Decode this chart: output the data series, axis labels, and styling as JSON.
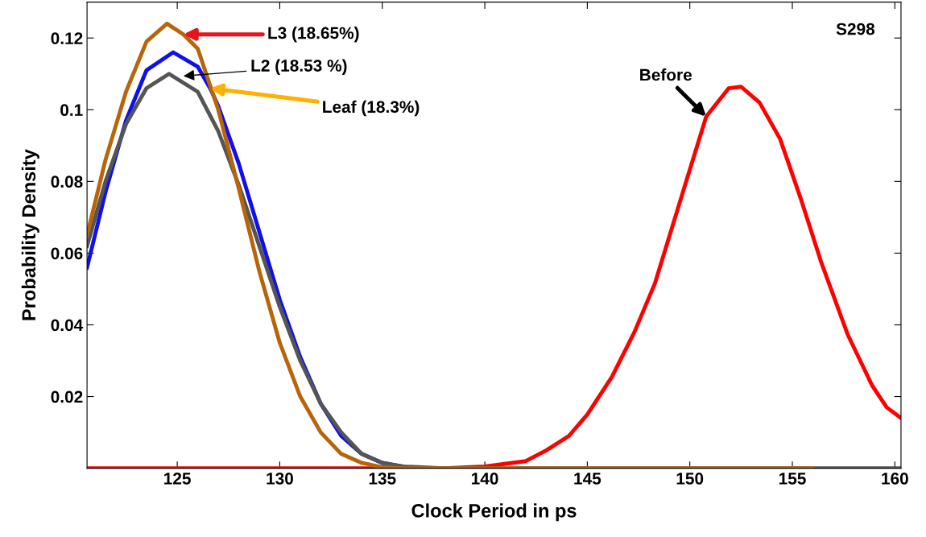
{
  "chart_data": {
    "type": "line",
    "xlabel": "Clock Period in ps",
    "ylabel": "Probability Density",
    "xlim": [
      120.6,
      160.3
    ],
    "ylim": [
      0,
      0.13
    ],
    "xticks": [
      125,
      130,
      135,
      140,
      145,
      150,
      155,
      160
    ],
    "yticks": [
      0.02,
      0.04,
      0.06,
      0.08,
      0.1,
      0.12
    ],
    "grid": false,
    "legend": false,
    "marker": "none",
    "line_style": "solid",
    "series": [
      {
        "color": "#ff0000",
        "x": [
          120.6,
          138,
          140,
          142,
          143,
          144.1,
          145,
          146.2,
          147.3,
          148.3,
          149.7,
          150.8,
          151.9,
          152.5,
          153.4,
          154.4,
          155.4,
          156.4,
          157.7,
          158.9,
          159.6,
          160.3
        ],
        "values": [
          0,
          0,
          0.0005,
          0.002,
          0.005,
          0.009,
          0.015,
          0.0255,
          0.038,
          0.0516,
          0.0777,
          0.0981,
          0.106,
          0.1064,
          0.102,
          0.0919,
          0.0754,
          0.0576,
          0.0373,
          0.023,
          0.017,
          0.014
        ]
      },
      {
        "color": "#1010ee",
        "x": [
          120.6,
          121.5,
          122.5,
          123.5,
          124.8,
          126,
          126.6,
          127,
          128,
          129,
          130,
          131,
          132,
          133,
          134,
          135,
          136
        ],
        "values": [
          0.056,
          0.077,
          0.097,
          0.111,
          0.116,
          0.112,
          0.106,
          0.101,
          0.085,
          0.066,
          0.047,
          0.031,
          0.018,
          0.009,
          0.004,
          0.0015,
          0.0005
        ]
      },
      {
        "color": "#555555",
        "x": [
          120.6,
          121.5,
          122.5,
          123.5,
          124.6,
          126,
          127,
          128,
          129,
          130,
          131,
          132,
          133,
          134,
          135,
          136,
          138,
          160.3
        ],
        "values": [
          0.062,
          0.08,
          0.096,
          0.106,
          0.11,
          0.105,
          0.094,
          0.079,
          0.062,
          0.045,
          0.03,
          0.018,
          0.01,
          0.004,
          0.0015,
          0.0005,
          0,
          0
        ]
      },
      {
        "color": "#b8650a",
        "x": [
          120.6,
          121.5,
          122.5,
          123.5,
          124.5,
          125.3,
          126,
          127,
          128,
          129,
          130,
          131,
          132,
          133,
          134,
          135,
          136,
          156
        ],
        "values": [
          0.065,
          0.086,
          0.105,
          0.119,
          0.124,
          0.121,
          0.117,
          0.1,
          0.078,
          0.055,
          0.035,
          0.02,
          0.01,
          0.004,
          0.0015,
          0.0003,
          0,
          0
        ]
      }
    ],
    "annotations": [
      {
        "text": "L3 (18.65%)",
        "x": 125.3,
        "y": 0.121
      },
      {
        "text": "L2 (18.53 %)",
        "x": 125.3,
        "y": 0.1094
      },
      {
        "text": "Leaf (18.3%)",
        "x": 126.6,
        "y": 0.106
      },
      {
        "text": "Before",
        "x": 150.8,
        "y": 0.0981
      },
      "S298"
    ]
  }
}
